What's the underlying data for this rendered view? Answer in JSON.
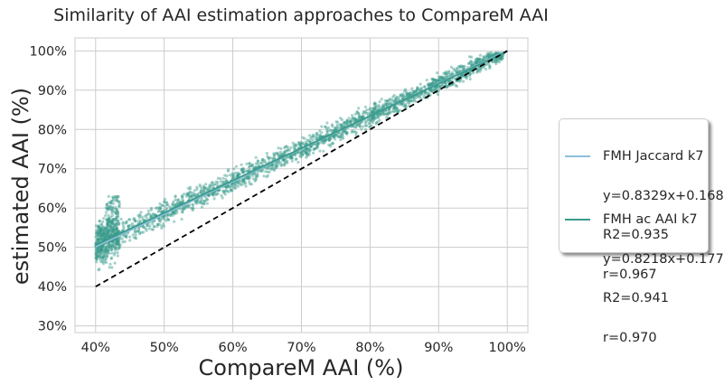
{
  "chart_data": {
    "type": "scatter",
    "title": "Similarity of AAI estimation approaches to CompareM AAI",
    "xlabel": "CompareM AAI (%)",
    "ylabel": "estimated AAI (%)",
    "xlim": [
      0.37,
      1.03
    ],
    "ylim": [
      0.283,
      1.033
    ],
    "xticks": [
      0.4,
      0.5,
      0.6,
      0.7,
      0.8,
      0.9,
      1.0
    ],
    "xtick_labels": [
      "40%",
      "50%",
      "60%",
      "70%",
      "80%",
      "90%",
      "100%"
    ],
    "yticks": [
      0.3,
      0.4,
      0.5,
      0.6,
      0.7,
      0.8,
      0.9,
      1.0
    ],
    "ytick_labels": [
      "30%",
      "40%",
      "50%",
      "60%",
      "70%",
      "80%",
      "90%",
      "100%"
    ],
    "grid": true,
    "legend_position": "outside right",
    "series": [
      {
        "name": "FMH Jaccard k7",
        "fit": {
          "slope": 0.8329,
          "intercept": 0.168,
          "r2": 0.935,
          "r": 0.967
        },
        "legend_lines": [
          "FMH Jaccard k7",
          "y=0.8329x+0.168",
          "R2=0.935",
          "r=0.967"
        ],
        "color": "#8dbfdb",
        "x_range": [
          0.4,
          1.0
        ]
      },
      {
        "name": "FMH ac AAI k7",
        "fit": {
          "slope": 0.8218,
          "intercept": 0.177,
          "r2": 0.941,
          "r": 0.97
        },
        "legend_lines": [
          "FMH ac AAI k7",
          "y=0.8218x+0.177",
          "R2=0.941",
          "r=0.970"
        ],
        "color": "#3a9b8c",
        "x_range": [
          0.4,
          1.0
        ]
      }
    ],
    "reference_line": {
      "x": [
        0.4,
        1.0
      ],
      "y": [
        0.4,
        1.0
      ],
      "style": "dashed",
      "color": "#000000"
    },
    "scatter_color": "#3a9b8c"
  }
}
